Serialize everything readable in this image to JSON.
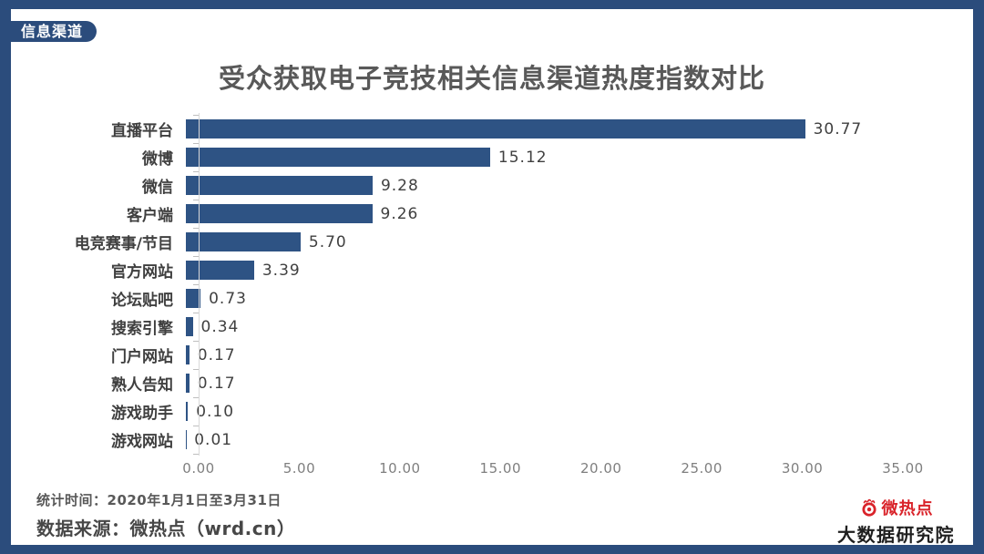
{
  "page": {
    "badge": "信息渠道",
    "frame_color": "#2b4c7c"
  },
  "chart_data": {
    "type": "bar",
    "orientation": "horizontal",
    "title": "受众获取电子竞技相关信息渠道热度指数对比",
    "categories": [
      "直播平台",
      "微博",
      "微信",
      "客户端",
      "电竞赛事/节目",
      "官方网站",
      "论坛贴吧",
      "搜索引擎",
      "门户网站",
      "熟人告知",
      "游戏助手",
      "游戏网站"
    ],
    "values": [
      30.77,
      15.12,
      9.28,
      9.26,
      5.7,
      3.39,
      0.73,
      0.34,
      0.17,
      0.17,
      0.1,
      0.01
    ],
    "value_labels": [
      "30.77",
      "15.12",
      "9.28",
      "9.26",
      "5.70",
      "3.39",
      "0.73",
      "0.34",
      "0.17",
      "0.17",
      "0.10",
      "0.01"
    ],
    "x_ticks": [
      "0.00",
      "5.00",
      "10.00",
      "15.00",
      "20.00",
      "25.00",
      "30.00",
      "35.00"
    ],
    "x_tick_values": [
      0,
      5,
      10,
      15,
      20,
      25,
      30,
      35
    ],
    "xlim": [
      0,
      35
    ],
    "xlabel": "",
    "ylabel": "",
    "grid": false,
    "legend": false,
    "bar_color": "#2e5384",
    "axis_color": "#d9d9d9",
    "tick_label_color": "#7f7f7f"
  },
  "footer": {
    "stat_time": "统计时间：2020年1月1日至3月31日",
    "data_source": "数据来源：微热点（wrd.cn）"
  },
  "logo": {
    "brand": "微热点",
    "subtitle": "大数据研究院",
    "brand_color": "#d9232a"
  }
}
